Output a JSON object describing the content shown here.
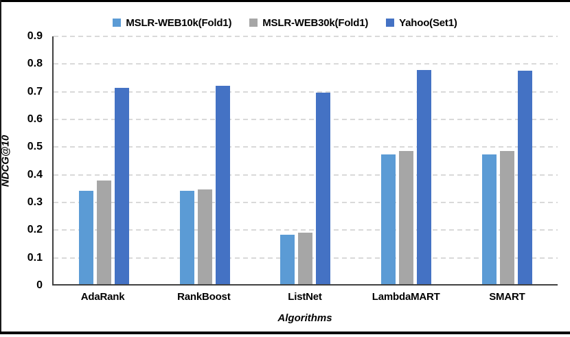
{
  "chart_data": {
    "type": "bar",
    "title": "",
    "categories": [
      "AdaRank",
      "RankBoost",
      "ListNet",
      "LambdaMART",
      "SMART"
    ],
    "series": [
      {
        "name": "MSLR-WEB10k(Fold1)",
        "color": "#5B9BD5",
        "values": [
          0.336,
          0.337,
          0.178,
          0.468,
          0.468
        ]
      },
      {
        "name": "MSLR-WEB30k(Fold1)",
        "color": "#A6A6A6",
        "values": [
          0.374,
          0.343,
          0.186,
          0.481,
          0.481
        ]
      },
      {
        "name": "Yahoo(Set1)",
        "color": "#4472C4",
        "values": [
          0.709,
          0.716,
          0.692,
          0.773,
          0.772
        ]
      }
    ],
    "xlabel": "Algorithms",
    "ylabel": "NDCG@10",
    "ylim": [
      0,
      0.9
    ],
    "yticks": [
      0,
      0.1,
      0.2,
      0.3,
      0.4,
      0.5,
      0.6,
      0.7,
      0.8,
      0.9
    ],
    "ytick_labels": [
      "0",
      "0.1",
      "0.2",
      "0.3",
      "0.4",
      "0.5",
      "0.6",
      "0.7",
      "0.8",
      "0.9"
    ],
    "grid": "horizontal-dashed",
    "legend_position": "top-center"
  },
  "colors": {
    "background": "#ffffff",
    "gridline": "#d9d9d9",
    "axis_line": "#404040",
    "text": "#000000",
    "frame": "#000000"
  }
}
